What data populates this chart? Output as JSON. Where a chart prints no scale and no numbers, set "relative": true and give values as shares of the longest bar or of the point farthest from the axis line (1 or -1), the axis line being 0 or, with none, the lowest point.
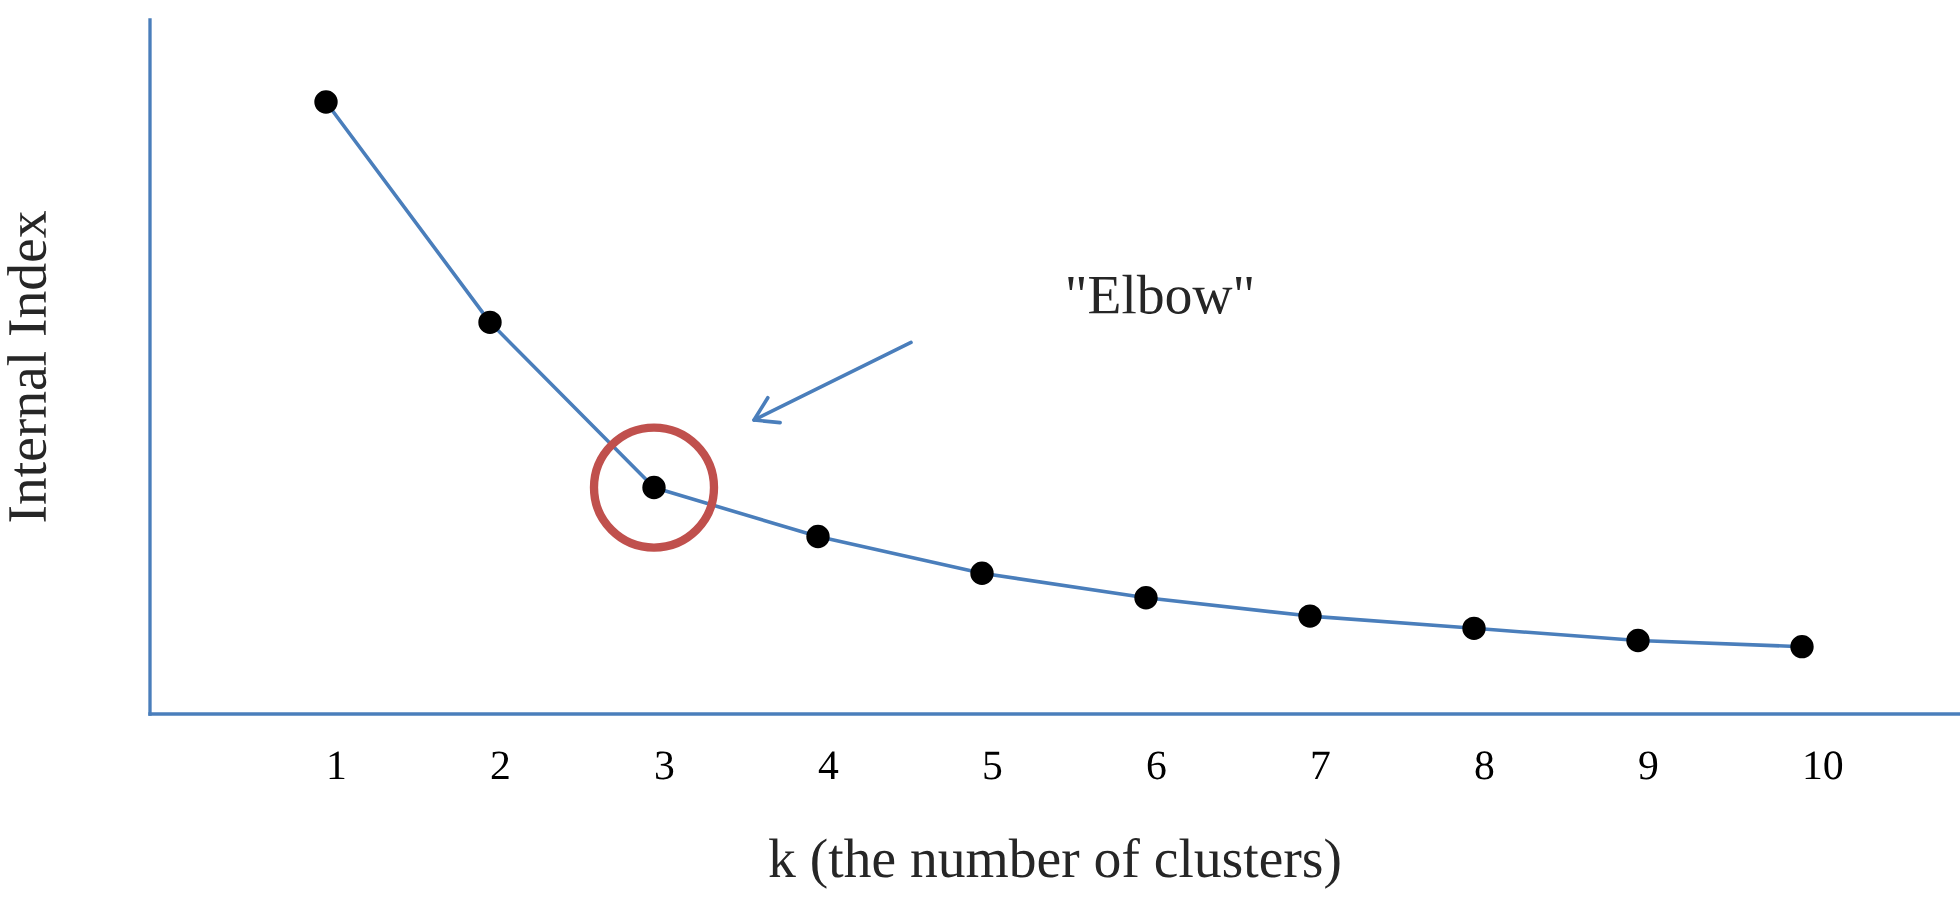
{
  "chart_data": {
    "type": "line",
    "relative": true,
    "xlabel": "k (the number of clusters)",
    "ylabel": "Internal Index",
    "categories": [
      "1",
      "2",
      "3",
      "4",
      "5",
      "6",
      "7",
      "8",
      "9",
      "10"
    ],
    "series": [
      {
        "color": "#4a7ebb",
        "values": [
          1.0,
          0.64,
          0.37,
          0.29,
          0.23,
          0.19,
          0.16,
          0.14,
          0.12,
          0.11
        ]
      }
    ],
    "marker": "circle",
    "line_style": "solid",
    "grid": false,
    "legend": false,
    "annotations": [
      "\"Elbow\""
    ]
  }
}
